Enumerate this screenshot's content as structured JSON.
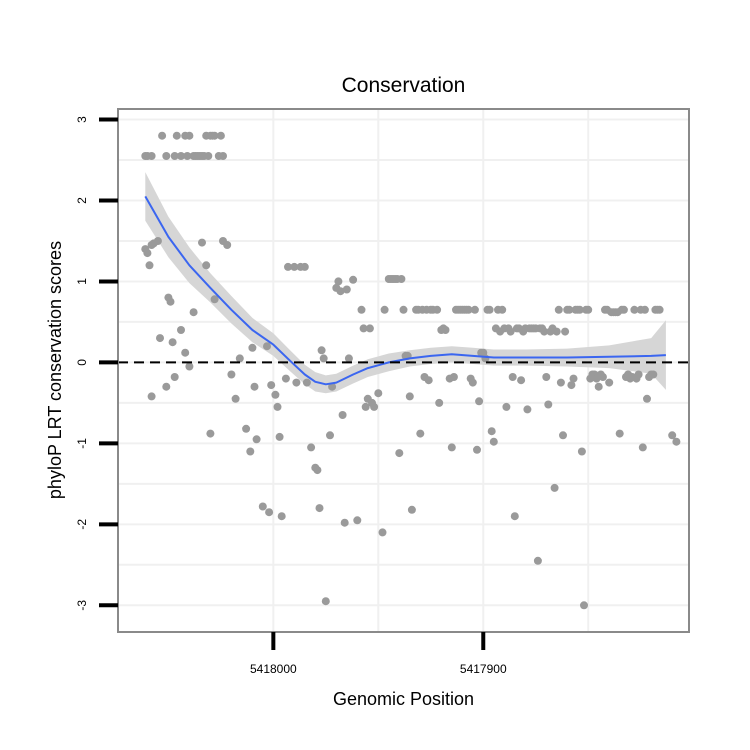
{
  "chart_data": {
    "type": "scatter",
    "title": "Conservation",
    "xlabel": "Genomic Position",
    "ylabel": "phyloP LRT conservation scores",
    "xlim": [
      5418074,
      5417802
    ],
    "ylim": [
      -3.33,
      3.13
    ],
    "x_reversed": true,
    "x_ticks": [
      5418000,
      5417900
    ],
    "x_tick_labels": [
      "5418000",
      "5417900"
    ],
    "y_ticks": [
      -3,
      -2,
      -1,
      0,
      1,
      2,
      3
    ],
    "y_tick_labels": [
      "-3",
      "-2",
      "-1",
      "0",
      "1",
      "2",
      "3"
    ],
    "grid": true,
    "reference_line": {
      "y": 0,
      "style": "dashed",
      "color": "#000000"
    },
    "colors": {
      "points": "#9a9a9a",
      "smooth_line": "#3b66f0",
      "confidence_band": "#d6d6d6",
      "panel_border": "#8a8a8a",
      "grid": "#f0f0f0"
    },
    "points": [
      [
        5418061,
        2.55
      ],
      [
        5418060,
        2.55
      ],
      [
        5418058,
        2.55
      ],
      [
        5418053,
        2.8
      ],
      [
        5418051,
        2.55
      ],
      [
        5418047,
        2.55
      ],
      [
        5418046,
        2.8
      ],
      [
        5418044,
        2.55
      ],
      [
        5418042,
        2.8
      ],
      [
        5418041,
        2.55
      ],
      [
        5418040,
        2.8
      ],
      [
        5418038,
        2.55
      ],
      [
        5418037,
        2.55
      ],
      [
        5418036,
        2.55
      ],
      [
        5418035,
        2.55
      ],
      [
        5418034,
        2.55
      ],
      [
        5418033,
        2.55
      ],
      [
        5418032,
        2.8
      ],
      [
        5418031,
        2.55
      ],
      [
        5418030,
        2.8
      ],
      [
        5418029,
        2.8
      ],
      [
        5418028,
        2.8
      ],
      [
        5418026,
        2.55
      ],
      [
        5418025,
        2.8
      ],
      [
        5418024,
        2.55
      ],
      [
        5418061,
        1.4
      ],
      [
        5418060,
        1.35
      ],
      [
        5418059,
        1.2
      ],
      [
        5418058,
        1.45
      ],
      [
        5418057,
        1.47
      ],
      [
        5418055,
        1.5
      ],
      [
        5418050,
        0.8
      ],
      [
        5418049,
        0.75
      ],
      [
        5418048,
        0.25
      ],
      [
        5418044,
        0.4
      ],
      [
        5418042,
        0.12
      ],
      [
        5418038,
        0.62
      ],
      [
        5418034,
        1.48
      ],
      [
        5418032,
        1.2
      ],
      [
        5418028,
        0.78
      ],
      [
        5418024,
        1.5
      ],
      [
        5418022,
        1.45
      ],
      [
        5418058,
        -0.42
      ],
      [
        5418054,
        0.3
      ],
      [
        5418051,
        -0.3
      ],
      [
        5418047,
        -0.18
      ],
      [
        5418040,
        -0.05
      ],
      [
        5418030,
        -0.88
      ],
      [
        5418020,
        -0.15
      ],
      [
        5418018,
        -0.45
      ],
      [
        5418016,
        0.05
      ],
      [
        5418013,
        -0.82
      ],
      [
        5418011,
        -1.1
      ],
      [
        5418010,
        0.18
      ],
      [
        5418009,
        -0.3
      ],
      [
        5418008,
        -0.95
      ],
      [
        5418005,
        -1.78
      ],
      [
        5418003,
        0.2
      ],
      [
        5418002,
        -1.85
      ],
      [
        5418001,
        -0.28
      ],
      [
        5417999,
        -0.4
      ],
      [
        5417998,
        -0.55
      ],
      [
        5417997,
        -0.92
      ],
      [
        5417996,
        -1.9
      ],
      [
        5417994,
        -0.2
      ],
      [
        5417993,
        1.18
      ],
      [
        5417990,
        1.18
      ],
      [
        5417989,
        -0.25
      ],
      [
        5417987,
        1.18
      ],
      [
        5417985,
        1.18
      ],
      [
        5417984,
        -0.25
      ],
      [
        5417982,
        -1.05
      ],
      [
        5417980,
        -1.3
      ],
      [
        5417979,
        -1.33
      ],
      [
        5417978,
        -1.8
      ],
      [
        5417977,
        0.15
      ],
      [
        5417976,
        0.05
      ],
      [
        5417975,
        -2.95
      ],
      [
        5417973,
        -0.9
      ],
      [
        5417972,
        -0.3
      ],
      [
        5417970,
        0.92
      ],
      [
        5417969,
        1.0
      ],
      [
        5417968,
        0.88
      ],
      [
        5417967,
        -0.65
      ],
      [
        5417966,
        -1.98
      ],
      [
        5417965,
        0.9
      ],
      [
        5417964,
        0.05
      ],
      [
        5417962,
        1.02
      ],
      [
        5417960,
        -1.95
      ],
      [
        5417958,
        0.65
      ],
      [
        5417957,
        0.42
      ],
      [
        5417956,
        -0.55
      ],
      [
        5417955,
        -0.45
      ],
      [
        5417954,
        0.42
      ],
      [
        5417953,
        -0.5
      ],
      [
        5417952,
        -0.55
      ],
      [
        5417950,
        -0.38
      ],
      [
        5417948,
        -2.1
      ],
      [
        5417947,
        0.65
      ],
      [
        5417945,
        1.03
      ],
      [
        5417944,
        1.03
      ],
      [
        5417943,
        1.03
      ],
      [
        5417942,
        1.03
      ],
      [
        5417941,
        1.03
      ],
      [
        5417940,
        -1.12
      ],
      [
        5417939,
        1.03
      ],
      [
        5417938,
        0.65
      ],
      [
        5417937,
        0.08
      ],
      [
        5417936,
        0.08
      ],
      [
        5417935,
        -0.42
      ],
      [
        5417934,
        -1.82
      ],
      [
        5417932,
        0.65
      ],
      [
        5417931,
        0.65
      ],
      [
        5417930,
        -0.88
      ],
      [
        5417929,
        0.65
      ],
      [
        5417928,
        -0.18
      ],
      [
        5417927,
        0.65
      ],
      [
        5417926,
        -0.22
      ],
      [
        5417925,
        0.65
      ],
      [
        5417924,
        0.65
      ],
      [
        5417922,
        0.65
      ],
      [
        5417921,
        -0.5
      ],
      [
        5417920,
        0.4
      ],
      [
        5417919,
        0.42
      ],
      [
        5417918,
        0.4
      ],
      [
        5417916,
        -0.2
      ],
      [
        5417915,
        -1.05
      ],
      [
        5417914,
        -0.18
      ],
      [
        5417913,
        0.65
      ],
      [
        5417912,
        0.65
      ],
      [
        5417911,
        0.65
      ],
      [
        5417910,
        0.65
      ],
      [
        5417909,
        0.65
      ],
      [
        5417908,
        0.65
      ],
      [
        5417907,
        0.65
      ],
      [
        5417906,
        -0.2
      ],
      [
        5417905,
        -0.25
      ],
      [
        5417904,
        0.65
      ],
      [
        5417903,
        -1.08
      ],
      [
        5417902,
        -0.48
      ],
      [
        5417901,
        0.12
      ],
      [
        5417900,
        0.12
      ],
      [
        5417899,
        0.05
      ],
      [
        5417898,
        0.65
      ],
      [
        5417897,
        0.65
      ],
      [
        5417896,
        -0.85
      ],
      [
        5417895,
        -0.98
      ],
      [
        5417894,
        0.42
      ],
      [
        5417893,
        0.65
      ],
      [
        5417892,
        0.38
      ],
      [
        5417891,
        0.65
      ],
      [
        5417890,
        0.42
      ],
      [
        5417889,
        -0.55
      ],
      [
        5417888,
        0.42
      ],
      [
        5417887,
        0.38
      ],
      [
        5417886,
        -0.18
      ],
      [
        5417885,
        -1.9
      ],
      [
        5417884,
        0.42
      ],
      [
        5417883,
        0.42
      ],
      [
        5417882,
        -0.22
      ],
      [
        5417881,
        0.38
      ],
      [
        5417880,
        0.42
      ],
      [
        5417879,
        -0.58
      ],
      [
        5417878,
        0.42
      ],
      [
        5417877,
        0.42
      ],
      [
        5417876,
        0.42
      ],
      [
        5417875,
        0.42
      ],
      [
        5417874,
        -2.45
      ],
      [
        5417873,
        0.42
      ],
      [
        5417872,
        0.42
      ],
      [
        5417871,
        0.38
      ],
      [
        5417870,
        -0.18
      ],
      [
        5417869,
        -0.52
      ],
      [
        5417868,
        0.38
      ],
      [
        5417867,
        0.42
      ],
      [
        5417866,
        -1.55
      ],
      [
        5417865,
        0.38
      ],
      [
        5417864,
        0.65
      ],
      [
        5417863,
        -0.25
      ],
      [
        5417862,
        -0.9
      ],
      [
        5417861,
        0.38
      ],
      [
        5417860,
        0.65
      ],
      [
        5417859,
        0.65
      ],
      [
        5417858,
        -0.28
      ],
      [
        5417857,
        -0.2
      ],
      [
        5417856,
        0.65
      ],
      [
        5417855,
        0.65
      ],
      [
        5417854,
        0.65
      ],
      [
        5417853,
        -1.1
      ],
      [
        5417852,
        -3.0
      ],
      [
        5417851,
        0.65
      ],
      [
        5417850,
        0.65
      ],
      [
        5417849,
        -0.2
      ],
      [
        5417848,
        -0.15
      ],
      [
        5417847,
        -0.15
      ],
      [
        5417846,
        -0.2
      ],
      [
        5417845,
        -0.3
      ],
      [
        5417844,
        -0.15
      ],
      [
        5417843,
        -0.18
      ],
      [
        5417842,
        0.65
      ],
      [
        5417841,
        0.65
      ],
      [
        5417840,
        -0.25
      ],
      [
        5417839,
        0.62
      ],
      [
        5417838,
        0.62
      ],
      [
        5417837,
        0.62
      ],
      [
        5417836,
        0.62
      ],
      [
        5417835,
        -0.88
      ],
      [
        5417834,
        0.65
      ],
      [
        5417833,
        0.65
      ],
      [
        5417832,
        -0.18
      ],
      [
        5417831,
        -0.15
      ],
      [
        5417830,
        -0.2
      ],
      [
        5417829,
        -0.18
      ],
      [
        5417828,
        0.65
      ],
      [
        5417827,
        -0.2
      ],
      [
        5417826,
        -0.15
      ],
      [
        5417825,
        0.65
      ],
      [
        5417824,
        -1.05
      ],
      [
        5417823,
        0.65
      ],
      [
        5417822,
        -0.45
      ],
      [
        5417821,
        -0.18
      ],
      [
        5417820,
        -0.15
      ],
      [
        5417819,
        -0.15
      ],
      [
        5417818,
        0.65
      ],
      [
        5417817,
        0.65
      ],
      [
        5417816,
        0.65
      ],
      [
        5417810,
        -0.9
      ],
      [
        5417808,
        -0.98
      ]
    ],
    "smooth_line": [
      [
        5418061,
        2.05
      ],
      [
        5418050,
        1.55
      ],
      [
        5418040,
        1.2
      ],
      [
        5418030,
        0.92
      ],
      [
        5418020,
        0.65
      ],
      [
        5418010,
        0.4
      ],
      [
        5418000,
        0.22
      ],
      [
        5417992,
        0.02
      ],
      [
        5417985,
        -0.15
      ],
      [
        5417980,
        -0.24
      ],
      [
        5417975,
        -0.27
      ],
      [
        5417970,
        -0.25
      ],
      [
        5417962,
        -0.15
      ],
      [
        5417955,
        -0.07
      ],
      [
        5417945,
        0.0
      ],
      [
        5417935,
        0.05
      ],
      [
        5417925,
        0.08
      ],
      [
        5417915,
        0.1
      ],
      [
        5417905,
        0.08
      ],
      [
        5417895,
        0.06
      ],
      [
        5417880,
        0.06
      ],
      [
        5417860,
        0.06
      ],
      [
        5417840,
        0.07
      ],
      [
        5417820,
        0.08
      ],
      [
        5417813,
        0.09
      ]
    ],
    "band_upper": [
      [
        5418061,
        2.35
      ],
      [
        5418050,
        1.8
      ],
      [
        5418040,
        1.42
      ],
      [
        5418030,
        1.1
      ],
      [
        5418020,
        0.82
      ],
      [
        5418010,
        0.55
      ],
      [
        5418000,
        0.36
      ],
      [
        5417992,
        0.15
      ],
      [
        5417985,
        -0.03
      ],
      [
        5417980,
        -0.12
      ],
      [
        5417975,
        -0.16
      ],
      [
        5417970,
        -0.14
      ],
      [
        5417962,
        -0.04
      ],
      [
        5417955,
        0.04
      ],
      [
        5417945,
        0.11
      ],
      [
        5417935,
        0.15
      ],
      [
        5417925,
        0.18
      ],
      [
        5417915,
        0.2
      ],
      [
        5417905,
        0.18
      ],
      [
        5417895,
        0.16
      ],
      [
        5417880,
        0.16
      ],
      [
        5417860,
        0.17
      ],
      [
        5417840,
        0.21
      ],
      [
        5417820,
        0.3
      ],
      [
        5417813,
        0.52
      ]
    ],
    "band_lower": [
      [
        5418061,
        1.75
      ],
      [
        5418050,
        1.3
      ],
      [
        5418040,
        0.98
      ],
      [
        5418030,
        0.74
      ],
      [
        5418020,
        0.48
      ],
      [
        5418010,
        0.25
      ],
      [
        5418000,
        0.08
      ],
      [
        5417992,
        -0.11
      ],
      [
        5417985,
        -0.27
      ],
      [
        5417980,
        -0.36
      ],
      [
        5417975,
        -0.38
      ],
      [
        5417970,
        -0.36
      ],
      [
        5417962,
        -0.26
      ],
      [
        5417955,
        -0.18
      ],
      [
        5417945,
        -0.11
      ],
      [
        5417935,
        -0.05
      ],
      [
        5417925,
        -0.02
      ],
      [
        5417915,
        0.0
      ],
      [
        5417905,
        -0.02
      ],
      [
        5417895,
        -0.04
      ],
      [
        5417880,
        -0.04
      ],
      [
        5417860,
        -0.05
      ],
      [
        5417840,
        -0.07
      ],
      [
        5417820,
        -0.14
      ],
      [
        5417813,
        -0.34
      ]
    ]
  }
}
